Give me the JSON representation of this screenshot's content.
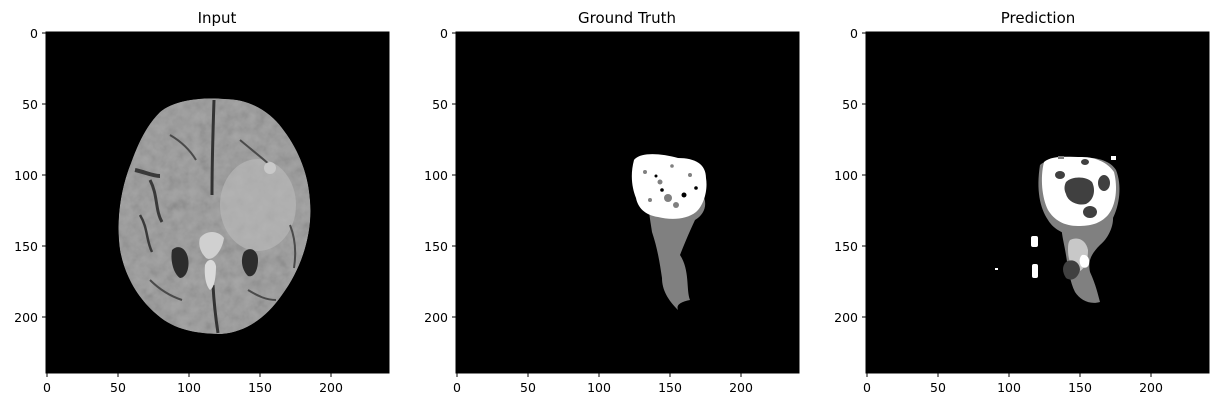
{
  "figure": {
    "panels": [
      {
        "title": "Input",
        "image_name": "brain-mri-slice",
        "x_ticks": [
          "0",
          "50",
          "100",
          "150",
          "200"
        ],
        "y_ticks": [
          "0",
          "50",
          "100",
          "150",
          "200"
        ]
      },
      {
        "title": "Ground Truth",
        "image_name": "ground-truth-segmentation-mask",
        "x_ticks": [
          "0",
          "50",
          "100",
          "150",
          "200"
        ],
        "y_ticks": [
          "0",
          "50",
          "100",
          "150",
          "200"
        ]
      },
      {
        "title": "Prediction",
        "image_name": "predicted-segmentation-mask",
        "x_ticks": [
          "0",
          "50",
          "100",
          "150",
          "200"
        ],
        "y_ticks": [
          "0",
          "50",
          "100",
          "150",
          "200"
        ]
      }
    ]
  },
  "colors": {
    "background": "#ffffff",
    "image_black": "#000000",
    "mask_white": "#ffffff",
    "mask_gray": "#808080",
    "mask_dark_gray": "#404040",
    "brain_tissue": "#a7a7a7"
  }
}
